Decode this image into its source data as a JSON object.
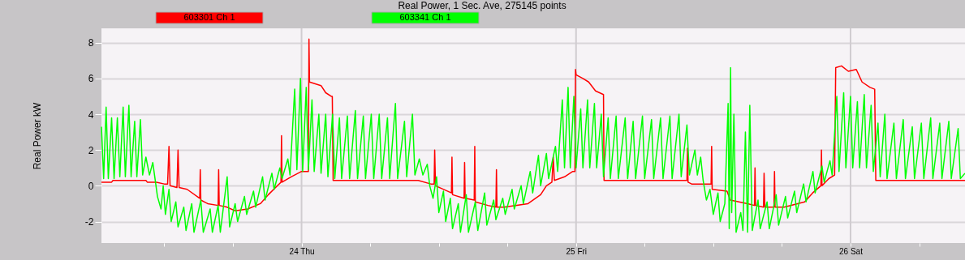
{
  "chart_data": {
    "type": "line",
    "title": "Real Power, 1 Sec. Ave, 275145 points",
    "ylabel": "Real Power kW",
    "xlim": [
      23.271,
      26.417
    ],
    "ylim": [
      -3.2,
      8.8
    ],
    "xticks": [
      {
        "value": 23.5,
        "label": null
      },
      {
        "value": 23.75,
        "label": null
      },
      {
        "value": 24,
        "label": "24 Thu"
      },
      {
        "value": 24.25,
        "label": null
      },
      {
        "value": 24.5,
        "label": null
      },
      {
        "value": 24.75,
        "label": null
      },
      {
        "value": 25,
        "label": "25 Fri"
      },
      {
        "value": 25.25,
        "label": null
      },
      {
        "value": 25.5,
        "label": null
      },
      {
        "value": 25.75,
        "label": null
      },
      {
        "value": 26,
        "label": "26 Sat"
      },
      {
        "value": 26.25,
        "label": null
      }
    ],
    "yticks": [
      -2,
      0,
      2,
      4,
      6,
      8
    ],
    "grid": true,
    "legend": "top",
    "marker": "none",
    "line_style": "solid",
    "series": [
      {
        "name": "603301 Ch 1",
        "color": "#ff0000",
        "x": [
          23.271,
          23.308,
          23.313,
          23.433,
          23.438,
          23.471,
          23.5,
          23.512,
          23.517,
          23.521,
          23.546,
          23.55,
          23.554,
          23.583,
          23.629,
          23.631,
          23.633,
          23.658,
          23.696,
          23.698,
          23.7,
          23.729,
          23.758,
          23.804,
          23.85,
          23.879,
          23.912,
          23.925,
          23.927,
          23.929,
          23.962,
          24,
          24.025,
          24.027,
          24.029,
          24.071,
          24.088,
          24.108,
          24.112,
          24.115,
          24.425,
          24.471,
          24.483,
          24.485,
          24.488,
          24.546,
          24.548,
          24.55,
          24.592,
          24.594,
          24.596,
          24.629,
          24.631,
          24.633,
          24.679,
          24.708,
          24.71,
          24.712,
          24.738,
          24.825,
          24.871,
          24.892,
          24.912,
          24.917,
          24.921,
          24.958,
          24.988,
          24.996,
          24.998,
          25,
          25.025,
          25.046,
          25.071,
          25.1,
          25.102,
          25.404,
          25.406,
          25.408,
          25.421,
          25.475,
          25.492,
          25.494,
          25.496,
          25.55,
          25.562,
          25.625,
          25.65,
          25.652,
          25.654,
          25.683,
          25.685,
          25.688,
          25.721,
          25.723,
          25.725,
          25.758,
          25.833,
          25.862,
          25.892,
          25.894,
          25.896,
          25.921,
          25.942,
          25.946,
          25.967,
          25.992,
          26.021,
          26.042,
          26.071,
          26.088,
          26.092,
          26.417
        ],
        "values": [
          0.2,
          0.2,
          0.3,
          0.3,
          0.2,
          0.2,
          0.1,
          0.1,
          2.2,
          0.0,
          -0.1,
          2.0,
          -0.1,
          -0.2,
          -0.7,
          0.9,
          -0.8,
          -1.0,
          -1.1,
          0.9,
          -1.1,
          -1.2,
          -1.4,
          -1.3,
          -1.0,
          -0.5,
          0.0,
          0.2,
          2.8,
          0.2,
          0.5,
          0.8,
          0.8,
          8.2,
          5.8,
          5.6,
          5.2,
          5.0,
          5.0,
          0.3,
          0.3,
          0.1,
          0.1,
          2.0,
          0.0,
          -0.4,
          1.6,
          -0.5,
          -0.7,
          1.3,
          -0.7,
          -0.8,
          2.2,
          -0.9,
          -1.1,
          -1.2,
          0.9,
          -1.2,
          -1.2,
          -1.0,
          -0.5,
          0.0,
          0.2,
          1.6,
          0.3,
          0.5,
          0.8,
          0.8,
          6.5,
          6.2,
          6.0,
          5.8,
          5.3,
          5.1,
          0.3,
          0.3,
          2.1,
          0.2,
          0.1,
          0.1,
          0.1,
          2.2,
          -0.2,
          -0.3,
          -0.8,
          -1.0,
          -1.1,
          1.0,
          -1.1,
          -1.2,
          0.7,
          -1.2,
          -1.2,
          0.8,
          -1.2,
          -1.2,
          -0.9,
          -0.4,
          0.0,
          2.0,
          0.0,
          0.4,
          0.6,
          6.6,
          6.7,
          6.4,
          6.5,
          5.8,
          5.5,
          5.4,
          0.3,
          0.3
        ]
      },
      {
        "name": "603341 Ch 1",
        "color": "#00ff00",
        "x": [
          23.271,
          23.279,
          23.288,
          23.296,
          23.308,
          23.317,
          23.329,
          23.338,
          23.35,
          23.358,
          23.371,
          23.379,
          23.392,
          23.4,
          23.413,
          23.421,
          23.433,
          23.446,
          23.458,
          23.467,
          23.475,
          23.488,
          23.496,
          23.504,
          23.517,
          23.525,
          23.542,
          23.55,
          23.571,
          23.579,
          23.6,
          23.608,
          23.633,
          23.642,
          23.667,
          23.675,
          23.696,
          23.704,
          23.729,
          23.738,
          23.758,
          23.767,
          23.792,
          23.8,
          23.825,
          23.833,
          23.858,
          23.867,
          23.892,
          23.9,
          23.921,
          23.929,
          23.95,
          23.958,
          23.975,
          23.983,
          23.996,
          24.004,
          24.017,
          24.025,
          24.038,
          24.046,
          24.063,
          24.071,
          24.088,
          24.096,
          24.113,
          24.121,
          24.138,
          24.146,
          24.167,
          24.175,
          24.196,
          24.204,
          24.225,
          24.233,
          24.254,
          24.263,
          24.283,
          24.292,
          24.313,
          24.321,
          24.342,
          24.35,
          24.375,
          24.383,
          24.404,
          24.413,
          24.429,
          24.442,
          24.458,
          24.467,
          24.479,
          24.492,
          24.5,
          24.517,
          24.525,
          24.542,
          24.55,
          24.571,
          24.579,
          24.6,
          24.608,
          24.633,
          24.642,
          24.667,
          24.675,
          24.7,
          24.708,
          24.733,
          24.742,
          24.767,
          24.775,
          24.8,
          24.808,
          24.833,
          24.842,
          24.863,
          24.871,
          24.892,
          24.9,
          24.925,
          24.933,
          24.95,
          24.958,
          24.971,
          24.979,
          24.992,
          25.0,
          25.017,
          25.025,
          25.042,
          25.05,
          25.067,
          25.075,
          25.092,
          25.1,
          25.117,
          25.125,
          25.146,
          25.154,
          25.179,
          25.188,
          25.208,
          25.217,
          25.242,
          25.25,
          25.275,
          25.283,
          25.308,
          25.317,
          25.342,
          25.35,
          25.375,
          25.383,
          25.404,
          25.413,
          25.433,
          25.442,
          25.454,
          25.463,
          25.475,
          25.488,
          25.5,
          25.517,
          25.525,
          25.542,
          25.554,
          25.558,
          25.563,
          25.567,
          25.575,
          25.583,
          25.6,
          25.608,
          25.617,
          25.625,
          25.633,
          25.642,
          25.663,
          25.671,
          25.696,
          25.704,
          25.729,
          25.738,
          25.763,
          25.771,
          25.796,
          25.804,
          25.829,
          25.838,
          25.863,
          25.871,
          25.896,
          25.904,
          25.925,
          25.933,
          25.95,
          25.958,
          25.975,
          25.983,
          26.0,
          26.008,
          26.025,
          26.033,
          26.05,
          26.058,
          26.075,
          26.083,
          26.1,
          26.108,
          26.125,
          26.133,
          26.158,
          26.167,
          26.192,
          26.2,
          26.225,
          26.233,
          26.258,
          26.267,
          26.292,
          26.3,
          26.325,
          26.333,
          26.358,
          26.367,
          26.392,
          26.4,
          26.417
        ],
        "values": [
          3.3,
          0.4,
          4.4,
          0.4,
          3.8,
          0.4,
          3.8,
          0.5,
          4.4,
          0.5,
          4.5,
          0.5,
          3.6,
          0.5,
          3.7,
          0.6,
          1.6,
          0.6,
          1.3,
          0.3,
          -0.6,
          -1.3,
          0.0,
          -1.6,
          -0.2,
          -2.0,
          -0.9,
          -2.3,
          -1.2,
          -2.5,
          -1.0,
          -2.6,
          -0.8,
          -2.6,
          -1.3,
          -2.6,
          -1.1,
          -2.6,
          0.5,
          -2.3,
          -1.0,
          -2.0,
          -0.6,
          -1.6,
          -0.3,
          -1.2,
          0.5,
          -0.8,
          0.7,
          -0.2,
          1.0,
          0.4,
          1.5,
          0.6,
          5.4,
          0.9,
          6.0,
          0.8,
          5.5,
          0.9,
          4.8,
          0.8,
          4.0,
          0.7,
          4.0,
          0.5,
          4.0,
          0.4,
          3.8,
          0.4,
          3.9,
          0.4,
          4.2,
          0.4,
          3.9,
          0.4,
          4.0,
          0.4,
          4.0,
          0.4,
          3.8,
          0.4,
          4.6,
          0.4,
          3.6,
          0.5,
          4.0,
          0.6,
          1.5,
          0.6,
          1.2,
          0.0,
          -0.7,
          0.5,
          -1.5,
          -0.3,
          -2.0,
          -0.7,
          -2.4,
          -1.0,
          -2.6,
          -0.5,
          -2.6,
          -0.9,
          -2.5,
          -0.4,
          -2.2,
          -0.8,
          -1.9,
          -0.7,
          -1.6,
          -0.2,
          -1.3,
          0.0,
          -1.0,
          0.8,
          -0.4,
          1.7,
          0.0,
          1.8,
          0.4,
          2.2,
          0.8,
          4.8,
          1.0,
          5.5,
          1.0,
          5.0,
          1.0,
          4.3,
          1.0,
          4.8,
          1.0,
          4.6,
          1.0,
          4.0,
          0.5,
          3.8,
          0.4,
          3.9,
          0.4,
          3.8,
          0.4,
          3.6,
          0.4,
          3.9,
          0.4,
          3.7,
          0.4,
          3.8,
          0.4,
          3.9,
          0.4,
          4.0,
          0.5,
          3.4,
          0.6,
          2.0,
          0.6,
          1.6,
          0.3,
          -0.8,
          -0.2,
          -1.6,
          -0.4,
          -2.0,
          -1.0,
          4.6,
          -2.4,
          6.6,
          -1.5,
          4.0,
          -2.6,
          -1.5,
          -2.5,
          3.0,
          -2.6,
          4.5,
          -2.5,
          -0.8,
          -2.4,
          -0.9,
          -2.4,
          -0.5,
          -2.2,
          -0.6,
          -1.8,
          -0.3,
          -1.5,
          0.1,
          -0.9,
          0.8,
          -0.4,
          1.1,
          0.2,
          1.4,
          0.6,
          5.0,
          0.8,
          5.2,
          1.0,
          5.0,
          1.0,
          4.7,
          1.0,
          5.1,
          1.0,
          4.5,
          0.8,
          3.5,
          0.5,
          4.0,
          0.4,
          3.5,
          0.4,
          3.7,
          0.4,
          3.3,
          0.4,
          3.5,
          0.4,
          3.8,
          0.4,
          3.5,
          0.4,
          3.6,
          0.4,
          3.2,
          0.4,
          0.7
        ]
      }
    ]
  }
}
